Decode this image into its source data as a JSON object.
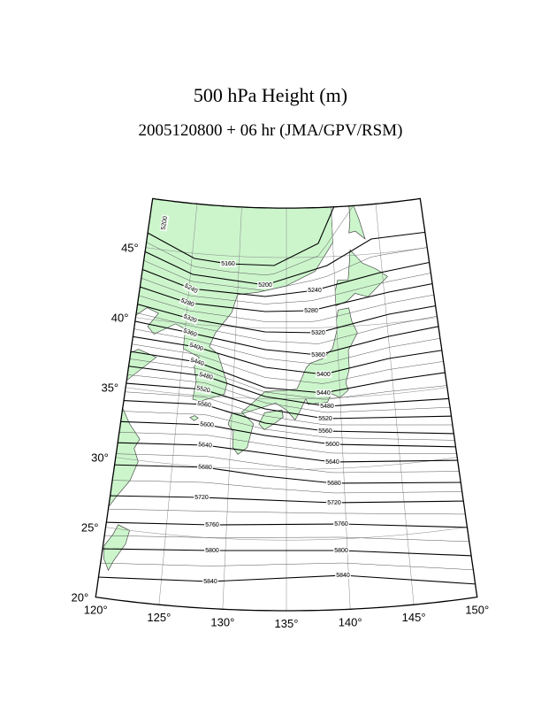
{
  "header": {
    "title": "500 hPa Height (m)",
    "subtitle": "2005120800 + 06 hr (JMA/GPV/RSM)"
  },
  "latitudes": [
    {
      "value": 20,
      "label": "20°"
    },
    {
      "value": 25,
      "label": "25°"
    },
    {
      "value": 30,
      "label": "30°"
    },
    {
      "value": 35,
      "label": "35°"
    },
    {
      "value": 40,
      "label": "40°"
    },
    {
      "value": 45,
      "label": "45°"
    }
  ],
  "longitudes": [
    {
      "value": 120,
      "label": "120°"
    },
    {
      "value": 125,
      "label": "125°"
    },
    {
      "value": 130,
      "label": "130°"
    },
    {
      "value": 135,
      "label": "135°"
    },
    {
      "value": 140,
      "label": "140°"
    },
    {
      "value": 145,
      "label": "145°"
    },
    {
      "value": 150,
      "label": "150°"
    }
  ],
  "contours": [
    5160,
    5200,
    5240,
    5280,
    5320,
    5360,
    5400,
    5440,
    5480,
    5520,
    5560,
    5600,
    5640,
    5680,
    5720,
    5760,
    5800,
    5840
  ],
  "contour_labels": [
    5200,
    5160,
    5200,
    5240,
    5240,
    5280,
    5280,
    5320,
    5320,
    5360,
    5360,
    5400,
    5400,
    5440,
    5440,
    5480,
    5480,
    5520,
    5520,
    5560,
    5560,
    5600,
    5600,
    5640,
    5640,
    5680,
    5680,
    5720,
    5720,
    5760,
    5760,
    5800,
    5800,
    5840,
    5840
  ]
}
